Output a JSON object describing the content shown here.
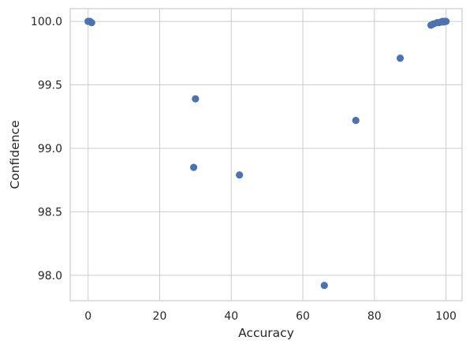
{
  "chart_data": {
    "type": "scatter",
    "title": "",
    "xlabel": "Accuracy",
    "ylabel": "Confidence",
    "xlim": [
      -5,
      104.5
    ],
    "ylim": [
      97.8,
      100.1
    ],
    "xticks": [
      0,
      20,
      40,
      60,
      80,
      100
    ],
    "yticks": [
      98.0,
      98.5,
      99.0,
      99.5,
      100.0
    ],
    "xtick_labels": [
      "0",
      "20",
      "40",
      "60",
      "80",
      "100"
    ],
    "ytick_labels": [
      "98.0",
      "98.5",
      "99.0",
      "99.5",
      "100.0"
    ],
    "grid": true,
    "legend": "none",
    "point_color": "#4c72b0",
    "series": [
      {
        "points": [
          [
            0.0,
            100.0
          ],
          [
            0.5,
            100.0
          ],
          [
            1.0,
            99.99
          ],
          [
            29.5,
            98.85
          ],
          [
            30.0,
            99.39
          ],
          [
            42.3,
            98.79
          ],
          [
            66.0,
            97.92
          ],
          [
            74.8,
            99.22
          ],
          [
            87.2,
            99.71
          ],
          [
            95.8,
            99.97
          ],
          [
            96.5,
            99.98
          ],
          [
            97.5,
            99.99
          ],
          [
            98.0,
            99.99
          ],
          [
            98.6,
            99.995
          ],
          [
            99.0,
            100.0
          ],
          [
            99.3,
            99.995
          ],
          [
            99.6,
            100.0
          ],
          [
            100.0,
            100.0
          ]
        ]
      }
    ]
  }
}
